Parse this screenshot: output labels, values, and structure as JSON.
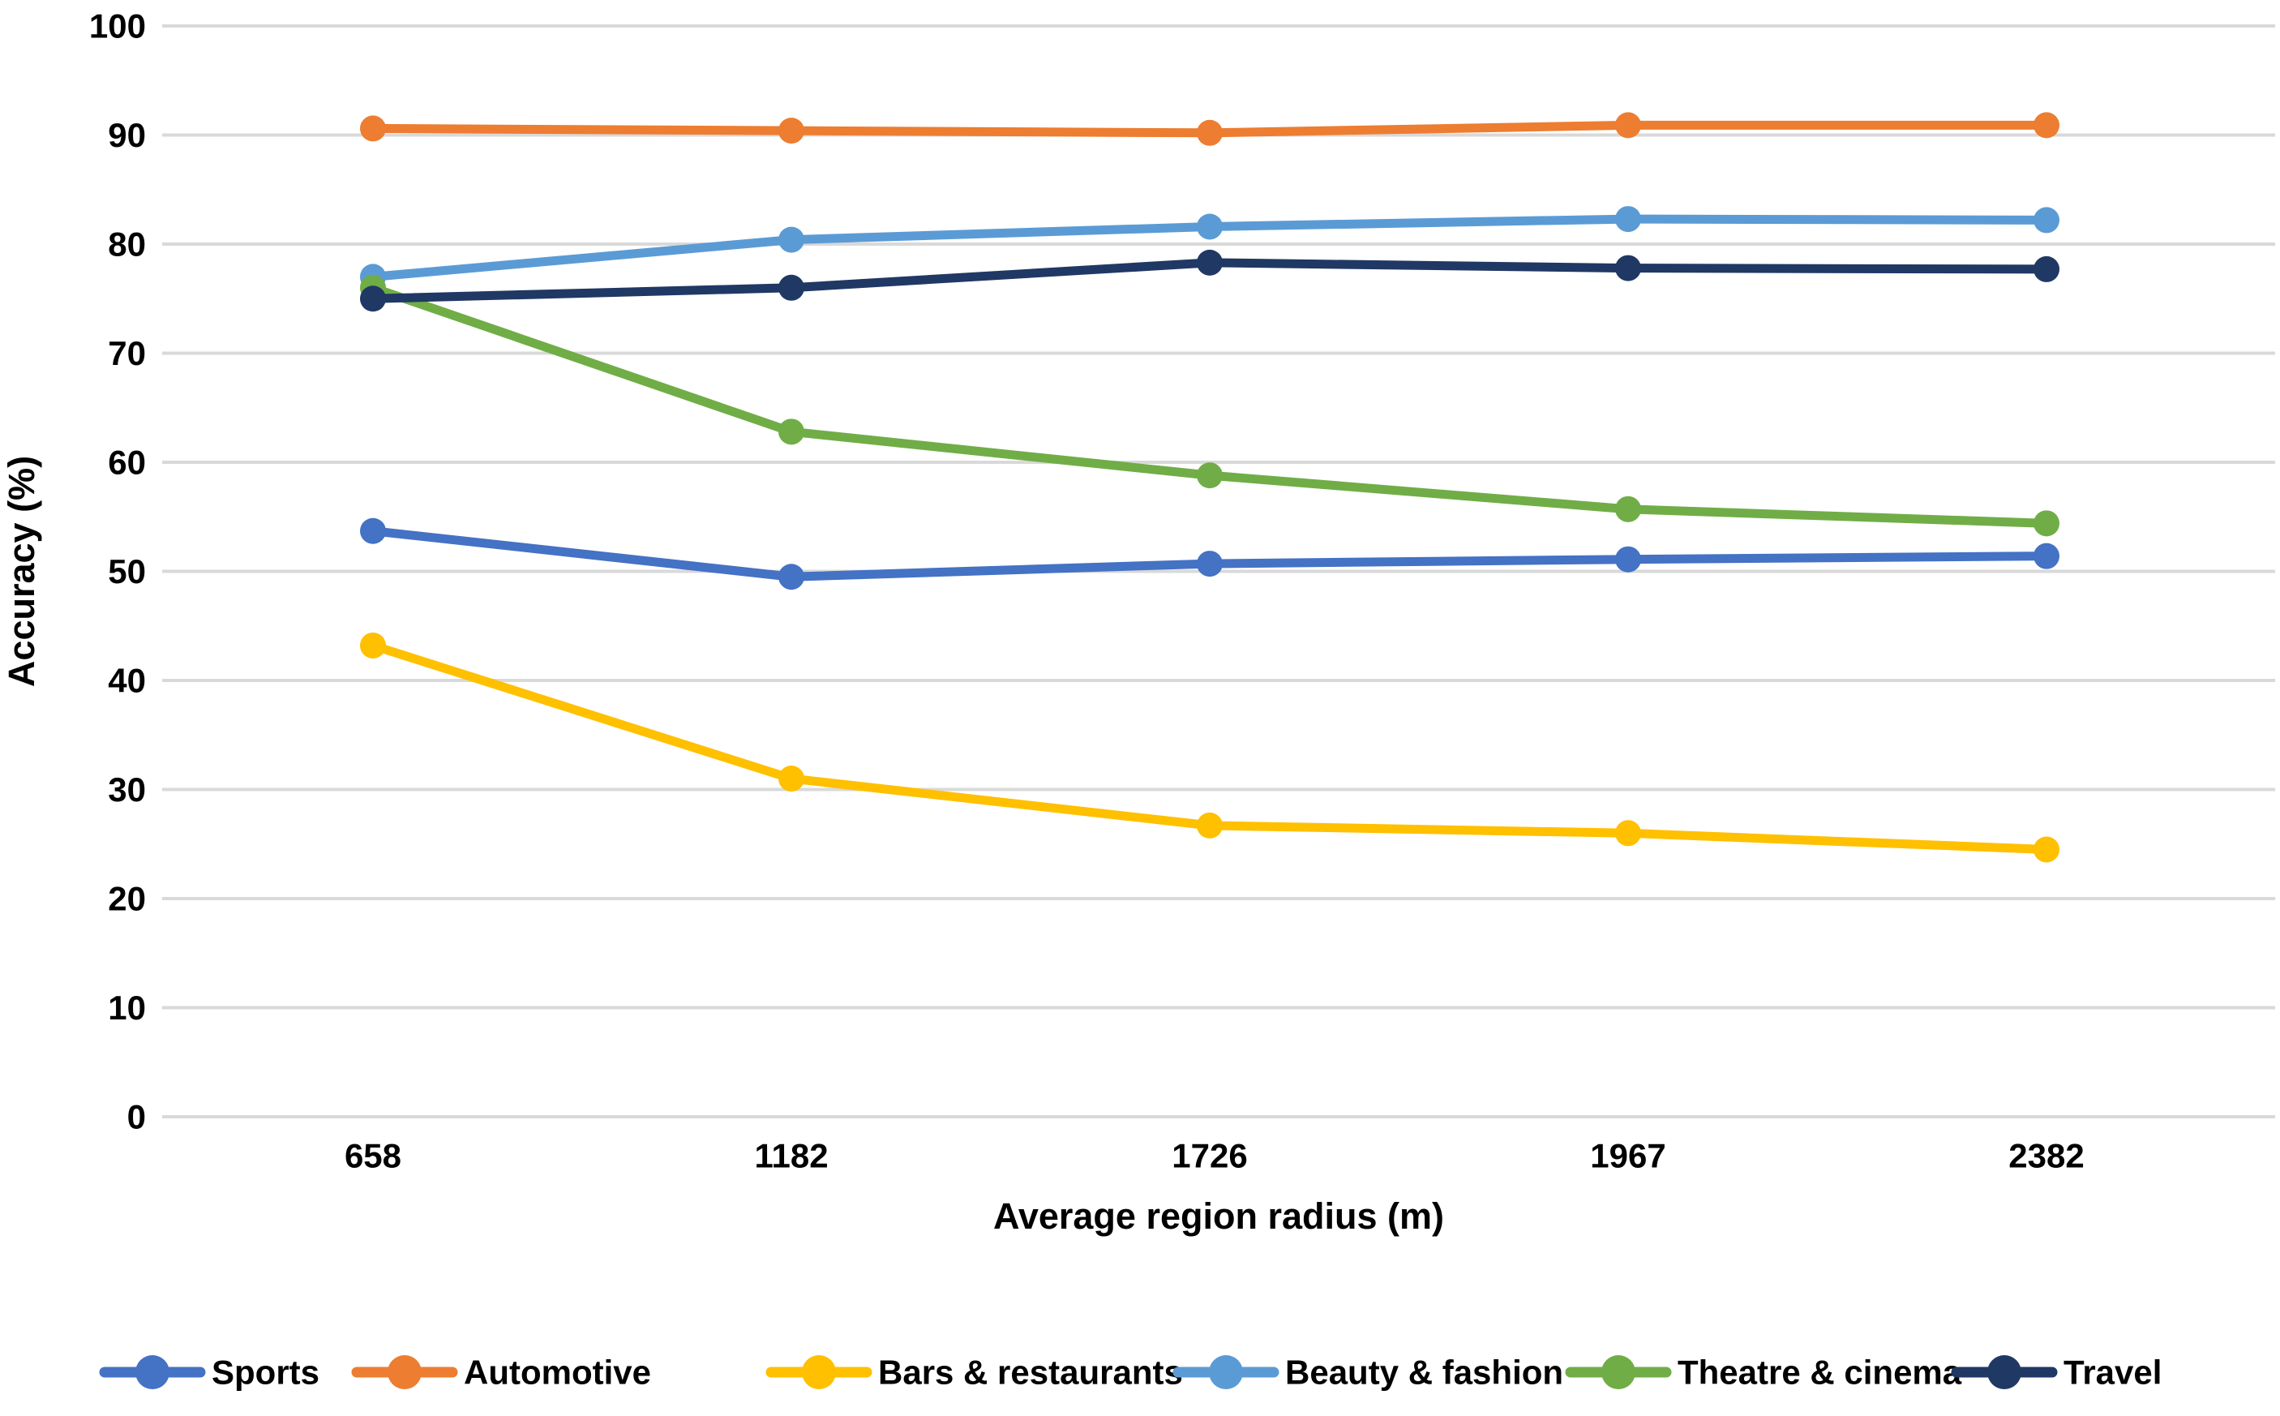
{
  "chart_data": {
    "type": "line",
    "title": "",
    "xlabel": "Average region radius (m)",
    "ylabel": "Accuracy (%)",
    "categories": [
      "658",
      "1182",
      "1726",
      "1967",
      "2382"
    ],
    "yticks": [
      "0",
      "10",
      "20",
      "30",
      "40",
      "50",
      "60",
      "70",
      "80",
      "90",
      "100"
    ],
    "ylim": [
      0,
      100
    ],
    "ytick_step": 10,
    "grid": "horizontal-only",
    "gridline_color": "#D9D9D9",
    "text_color": "#000000",
    "background_color": "#FFFFFF",
    "legend_position": "bottom",
    "marker_style": "circle",
    "series": [
      {
        "name": "Sports",
        "color": "#4472C4",
        "values": [
          53.7,
          49.5,
          50.7,
          51.1,
          51.4
        ]
      },
      {
        "name": "Automotive",
        "color": "#ED7D31",
        "values": [
          90.6,
          90.4,
          90.2,
          90.9,
          90.9
        ]
      },
      {
        "name": "Bars & restaurants",
        "color": "#FFC000",
        "values": [
          43.2,
          31.0,
          26.7,
          26.0,
          24.5
        ]
      },
      {
        "name": "Beauty & fashion",
        "color": "#5B9BD5",
        "values": [
          77.0,
          80.4,
          81.6,
          82.3,
          82.2
        ]
      },
      {
        "name": "Theatre & cinema",
        "color": "#70AD47",
        "values": [
          76.0,
          62.8,
          58.8,
          55.7,
          54.4
        ]
      },
      {
        "name": "Travel",
        "color": "#203864",
        "values": [
          75.0,
          76.0,
          78.3,
          77.8,
          77.7
        ]
      }
    ]
  }
}
